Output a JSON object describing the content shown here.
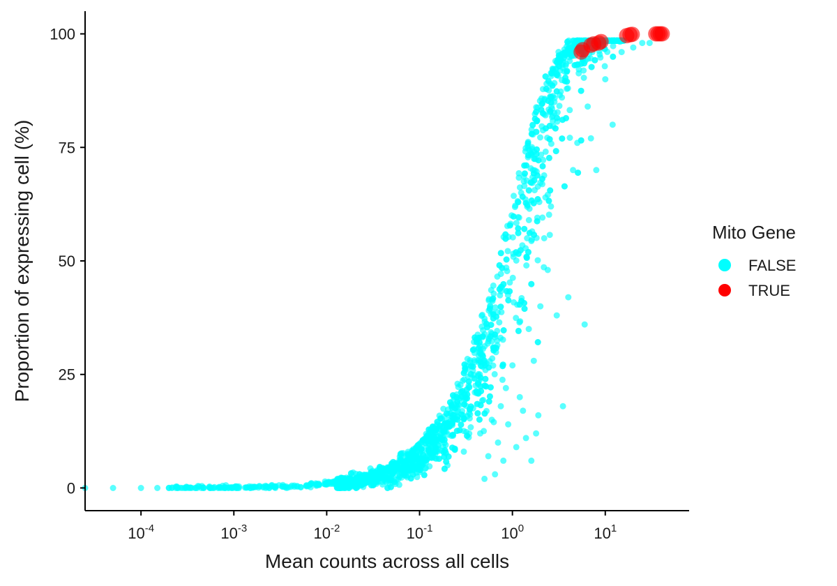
{
  "chart_data": {
    "type": "scatter",
    "title": "",
    "xlabel": "Mean counts across all cells",
    "ylabel": "Proportion of expressing cell (%)",
    "x_scale": "log10",
    "xlim": [
      2.5e-05,
      80
    ],
    "ylim": [
      -5,
      105
    ],
    "x_ticks": [
      {
        "value": 0.0001,
        "base": "10",
        "exp": "-4"
      },
      {
        "value": 0.001,
        "base": "10",
        "exp": "-3"
      },
      {
        "value": 0.01,
        "base": "10",
        "exp": "-2"
      },
      {
        "value": 0.1,
        "base": "10",
        "exp": "-1"
      },
      {
        "value": 1,
        "base": "10",
        "exp": "0"
      },
      {
        "value": 10,
        "base": "10",
        "exp": "1"
      }
    ],
    "y_ticks": [
      {
        "value": 0,
        "label": "0"
      },
      {
        "value": 25,
        "label": "25"
      },
      {
        "value": 50,
        "label": "50"
      },
      {
        "value": 75,
        "label": "75"
      },
      {
        "value": 100,
        "label": "100"
      }
    ],
    "grid": false,
    "legend": {
      "title": "Mito Gene",
      "placement": "right",
      "entries": [
        {
          "label": "FALSE",
          "color": "#00FFFF"
        },
        {
          "label": "TRUE",
          "color": "#FF0000"
        }
      ]
    },
    "series": [
      {
        "name": "FALSE",
        "color": "#00FFFF",
        "note_outliers_x": [
          0.2,
          0.3,
          0.45,
          0.5,
          0.55,
          0.6,
          0.65,
          0.7,
          0.75,
          0.8,
          0.85,
          0.9,
          1.0,
          1.1,
          1.2,
          1.3,
          1.4,
          1.5,
          1.6,
          1.7,
          1.8,
          1.9,
          2.0,
          2.2,
          2.4,
          2.6,
          3.0,
          3.5,
          4.0,
          4.5,
          5.0,
          6.0,
          7.0,
          8.0,
          10.0,
          12.0,
          15.0,
          20.0,
          25.0,
          30.0
        ],
        "note_outliers_y": [
          5,
          8,
          12,
          2,
          7,
          15,
          3,
          10,
          18,
          6,
          22,
          14,
          27,
          9,
          20,
          17,
          11,
          35,
          6,
          28,
          12,
          16,
          40,
          55,
          48,
          62,
          38,
          18,
          42,
          70,
          76,
          36,
          77,
          70,
          90,
          80,
          96,
          97,
          98,
          98
        ]
      },
      {
        "name": "TRUE",
        "x": [
          5.5,
          5.7,
          7.0,
          7.5,
          8.5,
          9.0,
          17.0,
          18.5,
          19.5,
          35.0,
          37.0,
          39.0,
          41.0
        ],
        "y": [
          96.0,
          96.5,
          97.5,
          97.8,
          98.0,
          98.3,
          99.6,
          99.8,
          99.9,
          100.0,
          100.0,
          100.0,
          100.0
        ],
        "color": "#FF0000"
      }
    ]
  }
}
